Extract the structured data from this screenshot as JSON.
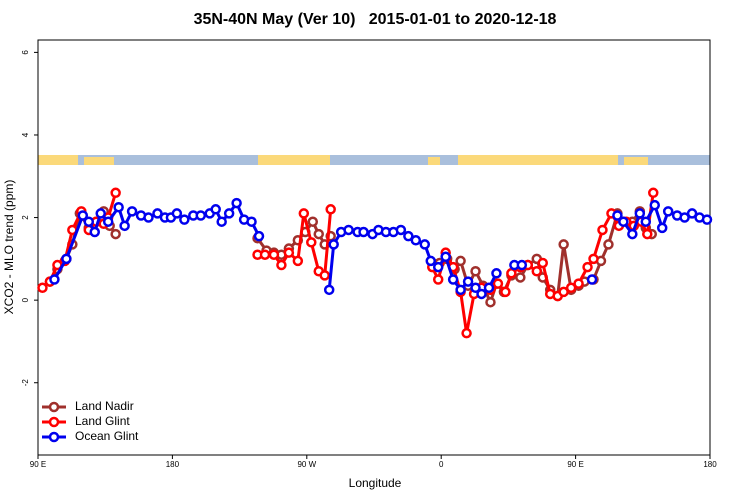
{
  "chart_data": {
    "type": "line",
    "title": "35N-40N May (Ver 10)   2015-01-01 to 2020-12-18",
    "x_label": "Longitude",
    "y_label": "XCO2 - MLO trend (ppm)",
    "xlim": [
      90,
      540
    ],
    "ylim": [
      -3.75,
      6.3
    ],
    "xticks": [
      {
        "value": 90,
        "label": "90 E"
      },
      180,
      {
        "value": 270,
        "label": "90 W"
      },
      {
        "value": 360,
        "label": "0"
      },
      {
        "value": 450,
        "label": "90 E"
      },
      {
        "value": 540,
        "label": "180"
      }
    ],
    "yticks": [
      6,
      4,
      2,
      0,
      -2
    ],
    "grid": false,
    "legend": "bottom-left",
    "series": [
      {
        "name": "Land Nadir",
        "color": "#a0302c",
        "x": [
          98,
          103,
          109,
          113,
          118,
          124,
          129,
          134,
          138,
          142,
          null,
          237,
          243,
          248,
          253,
          258,
          264,
          269,
          274,
          278,
          282,
          286,
          null,
          354,
          359,
          364,
          369,
          373,
          378,
          383,
          388,
          393,
          397,
          402,
          407,
          413,
          418,
          424,
          428,
          433,
          438,
          442,
          447,
          452,
          456,
          462,
          467,
          472,
          478,
          482,
          488,
          493,
          497,
          501
        ],
        "values": [
          0.45,
          0.75,
          1.0,
          1.35,
          2.1,
          1.75,
          1.9,
          2.15,
          1.8,
          1.6,
          null,
          1.5,
          1.2,
          1.15,
          1.1,
          1.25,
          1.45,
          1.65,
          1.9,
          1.6,
          1.35,
          1.55,
          null,
          0.9,
          0.9,
          1.0,
          0.75,
          0.95,
          0.35,
          0.7,
          0.35,
          -0.05,
          0.4,
          0.2,
          0.6,
          0.55,
          0.85,
          1.0,
          0.55,
          0.25,
          0.1,
          1.35,
          0.25,
          0.35,
          0.45,
          0.5,
          0.95,
          1.35,
          2.1,
          1.9,
          1.9,
          2.15,
          1.75,
          1.6
        ]
      },
      {
        "name": "Land Glint",
        "color": "#ff0000",
        "x": [
          93,
          98,
          103,
          108,
          113,
          119,
          124,
          129,
          134,
          137,
          142,
          null,
          237,
          242,
          248,
          253,
          258,
          264,
          268,
          273,
          278,
          282,
          286,
          null,
          354,
          358,
          363,
          368,
          373,
          377,
          382,
          387,
          393,
          398,
          403,
          407,
          413,
          418,
          424,
          428,
          433,
          438,
          442,
          447,
          452,
          458,
          462,
          468,
          474,
          479,
          484,
          489,
          494,
          498,
          502
        ],
        "values": [
          0.3,
          0.45,
          0.85,
          0.95,
          1.7,
          2.15,
          1.7,
          1.9,
          1.85,
          2.0,
          2.6,
          null,
          1.1,
          1.1,
          1.1,
          0.85,
          1.15,
          0.95,
          2.1,
          1.4,
          0.7,
          0.6,
          2.2,
          null,
          0.8,
          0.5,
          1.15,
          0.8,
          0.2,
          -0.8,
          0.15,
          0.3,
          0.25,
          0.4,
          0.2,
          0.65,
          0.8,
          0.85,
          0.7,
          0.9,
          0.15,
          0.1,
          0.2,
          0.3,
          0.4,
          0.8,
          1.0,
          1.7,
          2.1,
          1.8,
          1.9,
          1.8,
          1.9,
          1.6,
          2.6
        ]
      },
      {
        "name": "Ocean Glint",
        "color": "#0000ee",
        "x": [
          101,
          109,
          120,
          124,
          128,
          132,
          137,
          144,
          148,
          153,
          159,
          164,
          170,
          175,
          179,
          183,
          188,
          194,
          199,
          205,
          209,
          213,
          218,
          223,
          228,
          233,
          238,
          null,
          285,
          288,
          293,
          298,
          304,
          308,
          314,
          318,
          323,
          328,
          333,
          338,
          343,
          349,
          353,
          358,
          363,
          368,
          373,
          378,
          383,
          387,
          392,
          397,
          null,
          409,
          414,
          null,
          461,
          null,
          478,
          482,
          488,
          493,
          497,
          503,
          508,
          512,
          518,
          523,
          528,
          533,
          538
        ],
        "values": [
          0.5,
          1.0,
          2.05,
          1.9,
          1.65,
          2.1,
          1.9,
          2.25,
          1.8,
          2.15,
          2.05,
          2.0,
          2.1,
          2.0,
          2.0,
          2.1,
          1.95,
          2.05,
          2.05,
          2.1,
          2.2,
          1.9,
          2.1,
          2.35,
          1.95,
          1.9,
          1.55,
          null,
          0.25,
          1.35,
          1.65,
          1.7,
          1.65,
          1.65,
          1.6,
          1.7,
          1.65,
          1.65,
          1.7,
          1.55,
          1.45,
          1.35,
          0.95,
          0.8,
          1.05,
          0.5,
          0.25,
          0.45,
          0.3,
          0.15,
          0.3,
          0.65,
          null,
          0.85,
          0.85,
          null,
          0.5,
          null,
          2.05,
          1.9,
          1.6,
          2.1,
          1.9,
          2.3,
          1.75,
          2.15,
          2.05,
          2.0,
          2.1,
          2.0,
          1.95
        ]
      }
    ]
  }
}
